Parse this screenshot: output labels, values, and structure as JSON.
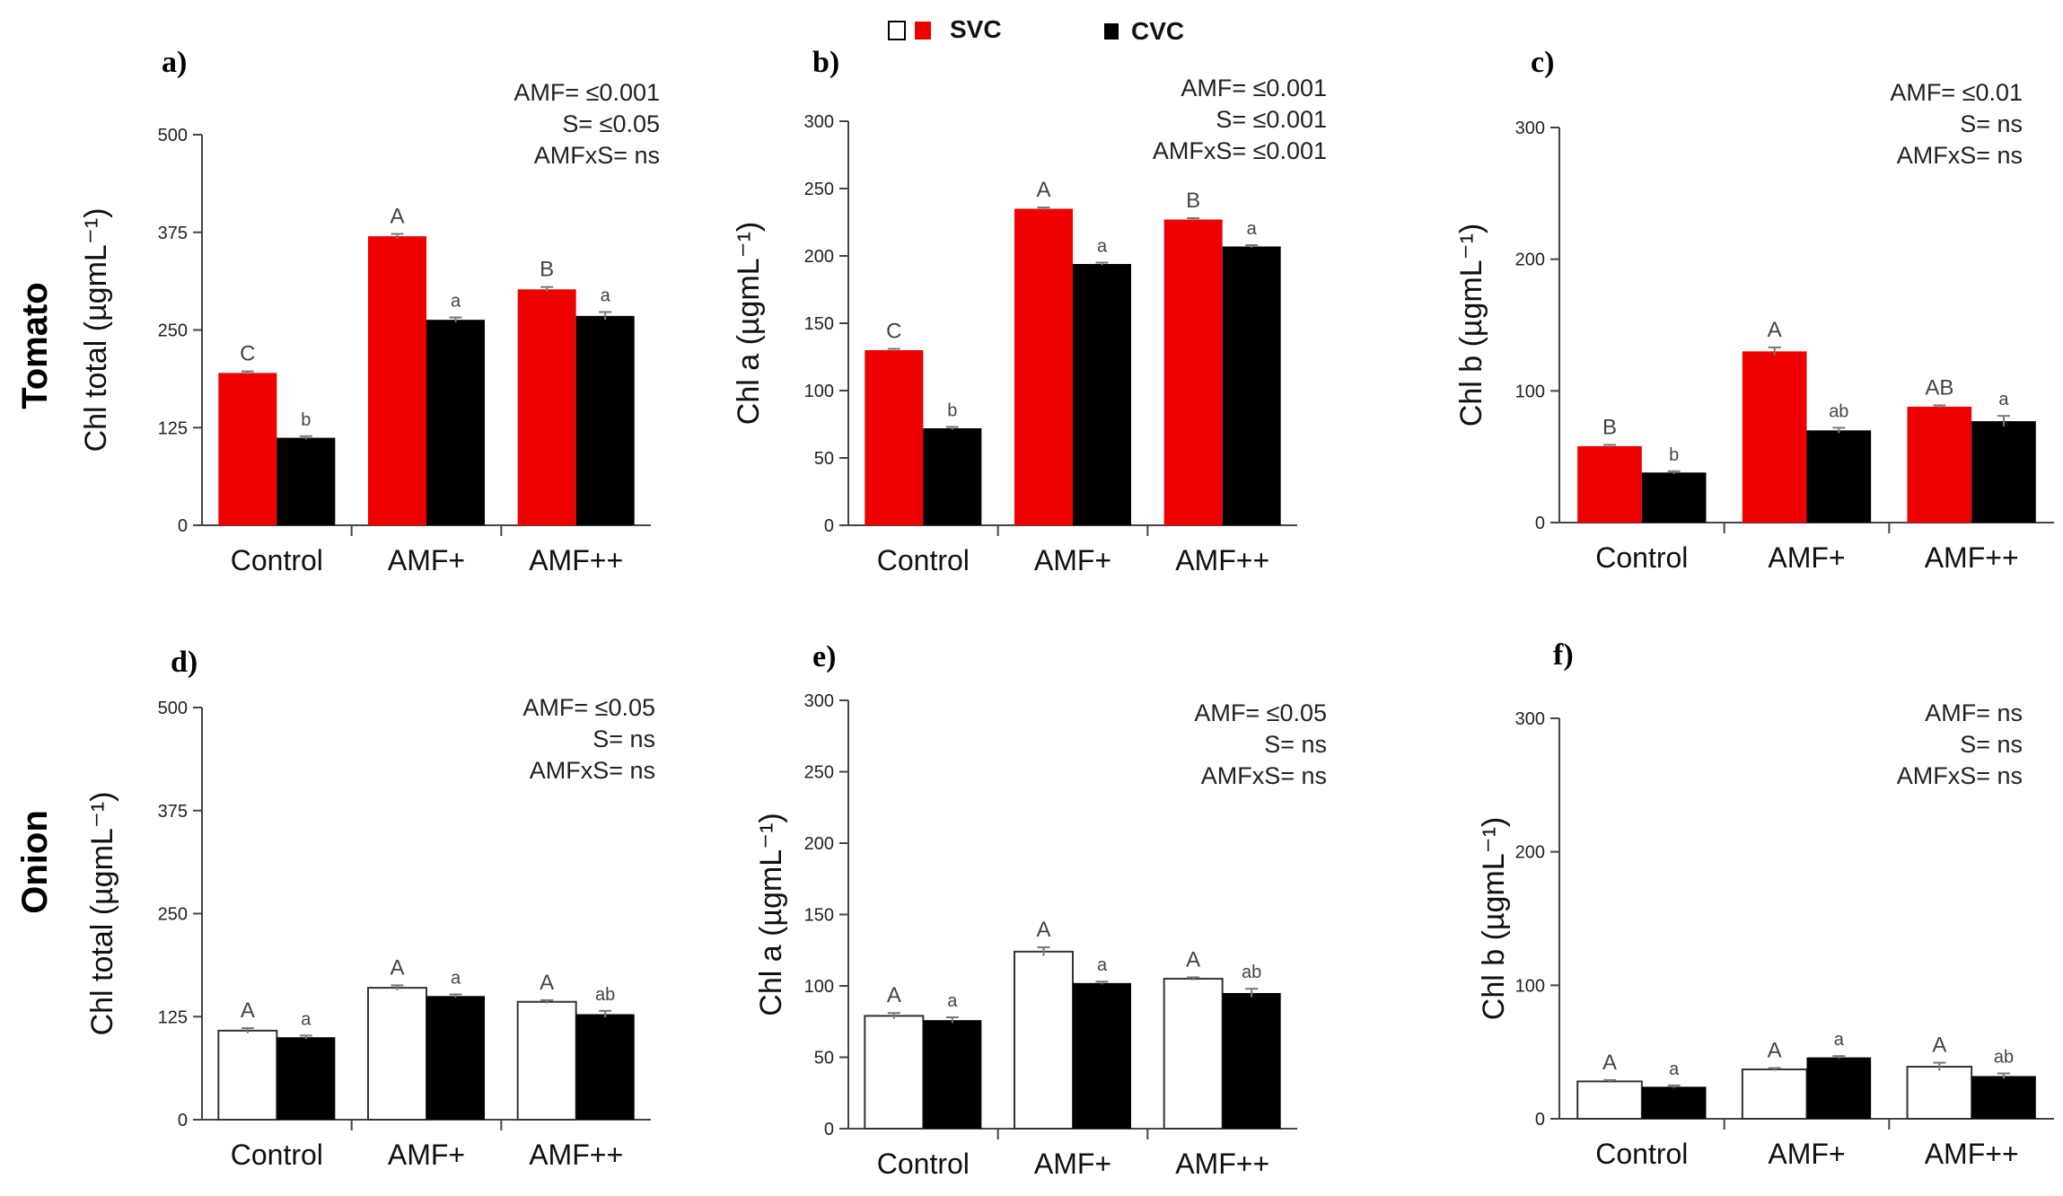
{
  "legend": {
    "items": [
      {
        "label": "SVC",
        "colors": [
          "#ffffff",
          "#ef0000"
        ]
      },
      {
        "label": "CVC",
        "colors": [
          "#000000"
        ]
      }
    ]
  },
  "row_labels": [
    "Tomato",
    "Onion"
  ],
  "chart_data": [
    {
      "type": "bar",
      "panel": "a)",
      "crop": "Tomato",
      "ylabel": "Chl total (µgmL⁻¹)",
      "ylim": [
        0,
        500
      ],
      "yticks": [
        0,
        125,
        250,
        375,
        500
      ],
      "categories": [
        "Control",
        "AMF+",
        "AMF++"
      ],
      "series": [
        {
          "name": "SVC",
          "color": "#ef0000",
          "values": [
            195,
            370,
            302
          ],
          "errors": [
            2,
            3,
            3
          ],
          "letters": [
            "C",
            "A",
            "B"
          ]
        },
        {
          "name": "CVC",
          "color": "#000000",
          "values": [
            112,
            263,
            268
          ],
          "errors": [
            2,
            3,
            5
          ],
          "letters": [
            "b",
            "a",
            "a"
          ]
        }
      ],
      "stats": [
        "AMF= ≤0.001",
        "S= ≤0.05",
        "AMFxS= ns"
      ]
    },
    {
      "type": "bar",
      "panel": "b)",
      "crop": "Tomato",
      "ylabel": "Chl a (µgmL⁻¹)",
      "ylim": [
        0,
        300
      ],
      "yticks": [
        0,
        50,
        100,
        150,
        200,
        250,
        300
      ],
      "categories": [
        "Control",
        "AMF+",
        "AMF++"
      ],
      "series": [
        {
          "name": "SVC",
          "color": "#ef0000",
          "values": [
            130,
            235,
            227
          ],
          "errors": [
            1,
            1,
            1
          ],
          "letters": [
            "C",
            "A",
            "B"
          ]
        },
        {
          "name": "CVC",
          "color": "#000000",
          "values": [
            72,
            194,
            207
          ],
          "errors": [
            1,
            1,
            1
          ],
          "letters": [
            "b",
            "a",
            "a"
          ]
        }
      ],
      "stats": [
        "AMF= ≤0.001",
        "S= ≤0.001",
        "AMFxS= ≤0.001"
      ]
    },
    {
      "type": "bar",
      "panel": "c)",
      "crop": "Tomato",
      "ylabel": "Chl b (µgmL⁻¹)",
      "ylim": [
        0,
        300
      ],
      "yticks": [
        0,
        100,
        200,
        300
      ],
      "categories": [
        "Control",
        "AMF+",
        "AMF++"
      ],
      "series": [
        {
          "name": "SVC",
          "color": "#ef0000",
          "values": [
            58,
            130,
            88
          ],
          "errors": [
            1,
            3,
            1
          ],
          "letters": [
            "B",
            "A",
            "AB"
          ]
        },
        {
          "name": "CVC",
          "color": "#000000",
          "values": [
            38,
            70,
            77
          ],
          "errors": [
            1,
            2,
            4
          ],
          "letters": [
            "b",
            "ab",
            "a"
          ]
        }
      ],
      "stats": [
        "AMF= ≤0.01",
        "S= ns",
        "AMFxS= ns"
      ]
    },
    {
      "type": "bar",
      "panel": "d)",
      "crop": "Onion",
      "ylabel": "Chl total (µgmL⁻¹)",
      "ylim": [
        0,
        500
      ],
      "yticks": [
        0,
        125,
        250,
        375,
        500
      ],
      "categories": [
        "Control",
        "AMF+",
        "AMF++"
      ],
      "series": [
        {
          "name": "SVC",
          "color": "#ffffff",
          "values": [
            108,
            160,
            143
          ],
          "errors": [
            3,
            3,
            2
          ],
          "letters": [
            "A",
            "A",
            "A"
          ]
        },
        {
          "name": "CVC",
          "color": "#000000",
          "values": [
            100,
            150,
            128
          ],
          "errors": [
            2,
            2,
            4
          ],
          "letters": [
            "a",
            "a",
            "ab"
          ]
        }
      ],
      "stats": [
        "AMF= ≤0.05",
        "S= ns",
        "AMFxS= ns"
      ]
    },
    {
      "type": "bar",
      "panel": "e)",
      "crop": "Onion",
      "ylabel": "Chl a (µgmL⁻¹)",
      "ylim": [
        0,
        300
      ],
      "yticks": [
        0,
        50,
        100,
        150,
        200,
        250,
        300
      ],
      "categories": [
        "Control",
        "AMF+",
        "AMF++"
      ],
      "series": [
        {
          "name": "SVC",
          "color": "#ffffff",
          "values": [
            79,
            124,
            105
          ],
          "errors": [
            2,
            3,
            1
          ],
          "letters": [
            "A",
            "A",
            "A"
          ]
        },
        {
          "name": "CVC",
          "color": "#000000",
          "values": [
            76,
            102,
            95
          ],
          "errors": [
            2,
            1,
            3
          ],
          "letters": [
            "a",
            "a",
            "ab"
          ]
        }
      ],
      "stats": [
        "AMF= ≤0.05",
        "S= ns",
        "AMFxS= ns"
      ]
    },
    {
      "type": "bar",
      "panel": "f)",
      "crop": "Onion",
      "ylabel": "Chl b (µgmL⁻¹)",
      "ylim": [
        0,
        300
      ],
      "yticks": [
        0,
        100,
        200,
        300
      ],
      "categories": [
        "Control",
        "AMF+",
        "AMF++"
      ],
      "series": [
        {
          "name": "SVC",
          "color": "#ffffff",
          "values": [
            28,
            37,
            39
          ],
          "errors": [
            1,
            1,
            3
          ],
          "letters": [
            "A",
            "A",
            "A"
          ]
        },
        {
          "name": "CVC",
          "color": "#000000",
          "values": [
            24,
            46,
            32
          ],
          "errors": [
            1,
            1,
            2
          ],
          "letters": [
            "a",
            "a",
            "ab"
          ]
        }
      ],
      "stats": [
        "AMF= ns",
        "S= ns",
        "AMFxS= ns"
      ]
    }
  ]
}
